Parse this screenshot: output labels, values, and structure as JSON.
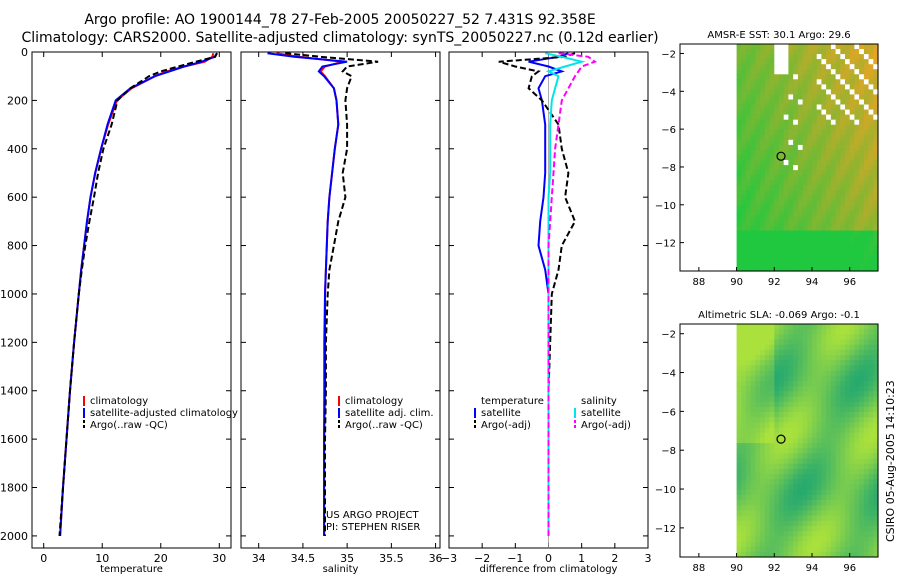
{
  "header": {
    "line1": "Argo profile: AO 1900144_78 27-Feb-2005 20050227_52 7.431S 92.358E",
    "line2": "Climatology: CARS2000. Satellite-adjusted climatology: synTS_20050227.nc (0.12d earlier)"
  },
  "colors": {
    "clim": "#ff0000",
    "sat": "#0000ff",
    "argo": "#000000",
    "salsat": "#00e5e5",
    "salargo": "#ff00ff",
    "sst_low": "#20c840",
    "sst_high": "#ffa020",
    "sla_base": "#30c040"
  },
  "footer": {
    "credit": "CSIRO 05-Aug-2005 14:10:23",
    "project": "US ARGO PROJECT",
    "pi": "PI: STEPHEN RISER"
  },
  "chart_data": [
    {
      "type": "line",
      "id": "temperature",
      "xlabel": "temperature",
      "xlim": [
        -2,
        32
      ],
      "xticks": [
        0,
        10,
        20,
        30
      ],
      "ylim": [
        2050,
        0
      ],
      "yticks": [
        0,
        200,
        400,
        600,
        800,
        1000,
        1200,
        1400,
        1600,
        1800,
        2000
      ],
      "legend": [
        "climatology",
        "satellite-adjusted climatology",
        "Argo(..raw -QC)"
      ],
      "depth": [
        5,
        20,
        40,
        60,
        80,
        100,
        150,
        200,
        300,
        400,
        500,
        600,
        700,
        800,
        900,
        1000,
        1200,
        1400,
        1600,
        1800,
        2000
      ],
      "series": [
        {
          "name": "climatology",
          "values": [
            29.0,
            28.8,
            27.5,
            24.0,
            21.0,
            19.0,
            15.0,
            12.5,
            11.0,
            9.8,
            8.8,
            8.0,
            7.4,
            6.9,
            6.4,
            6.0,
            5.2,
            4.5,
            3.9,
            3.3,
            2.8
          ]
        },
        {
          "name": "satellite-adjusted climatology",
          "values": [
            29.6,
            29.2,
            27.0,
            24.0,
            21.5,
            19.0,
            14.8,
            12.3,
            10.9,
            9.8,
            8.8,
            8.0,
            7.4,
            6.9,
            6.4,
            6.0,
            5.2,
            4.5,
            3.9,
            3.3,
            2.8
          ]
        },
        {
          "name": "Argo(..raw -QC)",
          "values": [
            29.6,
            29.3,
            26.0,
            23.0,
            20.0,
            18.0,
            14.8,
            12.6,
            11.6,
            10.2,
            9.3,
            8.6,
            7.8,
            7.1,
            6.5,
            6.0,
            5.2,
            4.5,
            3.9,
            3.3,
            2.7
          ]
        }
      ]
    },
    {
      "type": "line",
      "id": "salinity",
      "xlabel": "salinity",
      "xlim": [
        33.8,
        36.05
      ],
      "xticks": [
        34,
        34.5,
        35,
        35.5,
        36
      ],
      "ylim": [
        2050,
        0
      ],
      "legend": [
        "climatology",
        "satellite adj. clim.",
        "Argo(..raw -QC)"
      ],
      "depth": [
        5,
        20,
        40,
        60,
        80,
        100,
        150,
        200,
        300,
        400,
        500,
        600,
        700,
        800,
        900,
        1000,
        1200,
        1400,
        1600,
        1800,
        2000
      ],
      "series": [
        {
          "name": "climatology",
          "values": [
            34.2,
            34.45,
            34.95,
            34.75,
            34.7,
            34.75,
            34.85,
            34.88,
            34.9,
            34.86,
            34.83,
            34.8,
            34.78,
            34.77,
            34.76,
            34.75,
            34.74,
            34.74,
            34.74,
            34.74,
            34.74
          ]
        },
        {
          "name": "satellite adj. clim.",
          "values": [
            34.1,
            34.4,
            35.0,
            34.72,
            34.68,
            34.74,
            34.85,
            34.88,
            34.9,
            34.86,
            34.83,
            34.8,
            34.78,
            34.77,
            34.76,
            34.75,
            34.75,
            34.75,
            34.74,
            34.74,
            34.74
          ]
        },
        {
          "name": "Argo(..raw -QC)",
          "values": [
            34.3,
            34.7,
            35.35,
            35.0,
            34.95,
            35.05,
            35.0,
            34.98,
            35.0,
            35.0,
            34.95,
            34.98,
            34.9,
            34.85,
            34.8,
            34.78,
            34.76,
            34.76,
            34.75,
            34.75,
            34.75
          ]
        }
      ]
    },
    {
      "type": "line",
      "id": "difference",
      "xlabel": "difference from climatology",
      "xlim": [
        -3,
        3
      ],
      "xticks": [
        -3,
        -2,
        -1,
        0,
        1,
        2,
        3
      ],
      "ylim": [
        2050,
        0
      ],
      "legend_temperature": {
        "heading": "temperature",
        "entries": [
          "satellite",
          "Argo(-adj)"
        ]
      },
      "legend_salinity": {
        "heading": "salinity",
        "entries": [
          "satellite",
          "Argo(-adj)"
        ]
      },
      "depth": [
        5,
        20,
        40,
        60,
        80,
        100,
        150,
        200,
        300,
        400,
        500,
        600,
        700,
        800,
        900,
        1000,
        1200,
        1400,
        1600,
        1800,
        2000
      ],
      "series": [
        {
          "name": "temperature satellite",
          "values": [
            0.6,
            0.3,
            -0.6,
            0.0,
            0.4,
            -0.1,
            -0.3,
            -0.2,
            -0.1,
            -0.1,
            -0.1,
            -0.15,
            -0.25,
            -0.3,
            -0.1,
            0.0,
            0.0,
            0.0,
            0.0,
            0.0,
            0.0
          ]
        },
        {
          "name": "temperature Argo(-adj)",
          "values": [
            0.8,
            0.5,
            -1.5,
            -1.0,
            -0.3,
            -0.5,
            -0.6,
            -0.2,
            0.3,
            0.4,
            0.6,
            0.5,
            0.8,
            0.4,
            0.3,
            0.1,
            0.05,
            0.0,
            0.0,
            0.0,
            0.0
          ]
        },
        {
          "name": "salinity satellite",
          "values": [
            -0.1,
            0.4,
            1.0,
            0.5,
            0.0,
            0.3,
            0.2,
            0.1,
            0.05,
            0.05,
            0.05,
            0.0,
            0.0,
            0.0,
            0.0,
            0.0,
            0.0,
            0.0,
            0.0,
            0.0,
            0.0
          ]
        },
        {
          "name": "salinity Argo(-adj)",
          "values": [
            0.3,
            1.2,
            1.4,
            1.0,
            0.9,
            0.8,
            0.6,
            0.4,
            0.3,
            0.2,
            0.15,
            0.1,
            0.05,
            0.0,
            0.0,
            0.0,
            0.0,
            0.0,
            0.0,
            0.0,
            0.0
          ]
        }
      ]
    },
    {
      "type": "heatmap",
      "id": "sst-map",
      "title": "AMSR-E SST: 30.1 Argo: 29.6",
      "xlim": [
        87,
        97.5
      ],
      "ylim": [
        -13.5,
        -1.5
      ],
      "xticks": [
        88,
        90,
        92,
        94,
        96
      ],
      "yticks": [
        -2,
        -4,
        -6,
        -8,
        -10,
        -12
      ],
      "data_xrange": [
        90,
        97.5
      ],
      "argo_position": {
        "lon": 92.358,
        "lat": -7.431
      }
    },
    {
      "type": "heatmap",
      "id": "sla-map",
      "title": "Altimetric SLA: -0.069 Argo: -0.1",
      "xlim": [
        87,
        97.5
      ],
      "ylim": [
        -13.5,
        -1.5
      ],
      "xticks": [
        88,
        90,
        92,
        94,
        96
      ],
      "yticks": [
        -2,
        -4,
        -6,
        -8,
        -10,
        -12
      ],
      "data_xrange": [
        90,
        97.5
      ],
      "argo_position": {
        "lon": 92.358,
        "lat": -7.431
      }
    }
  ]
}
